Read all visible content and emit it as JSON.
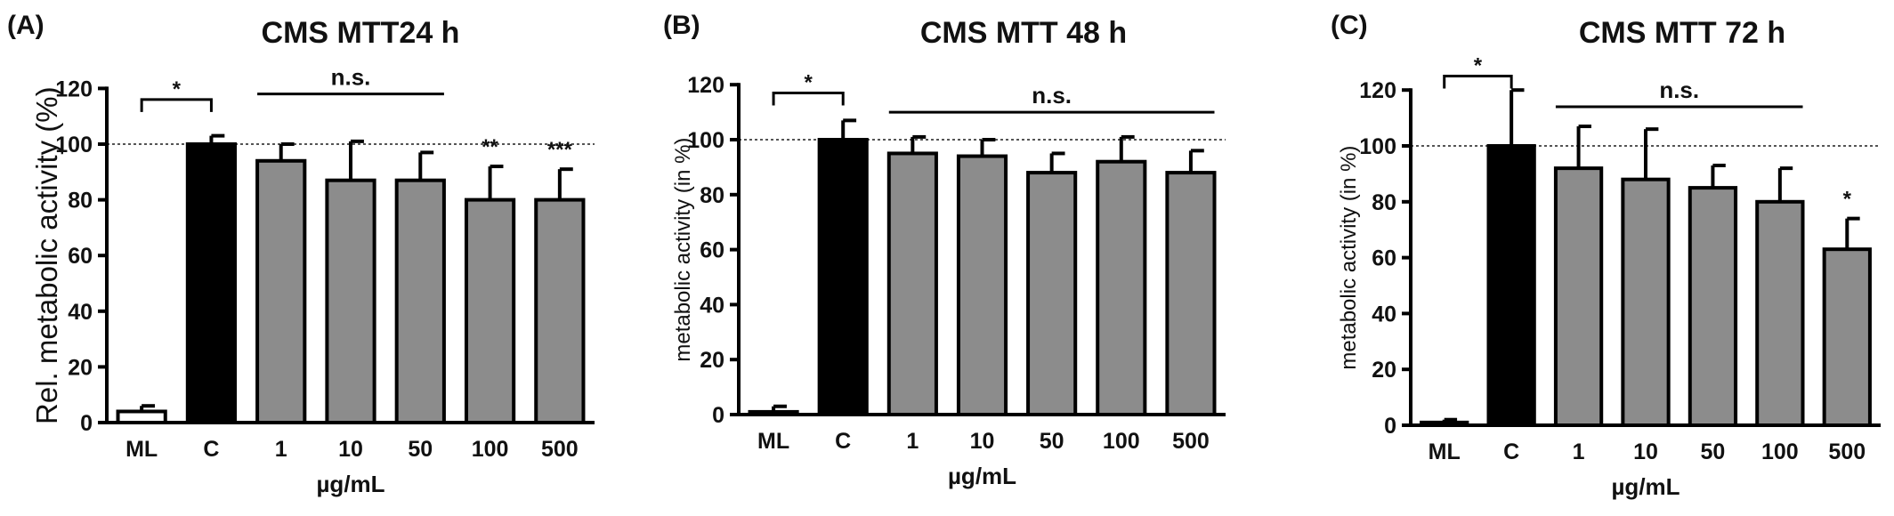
{
  "chart_data": [
    {
      "panel_label": "(A)",
      "type": "bar",
      "title": "CMS MTT24 h",
      "ylabel": "Rel. metabolic activity (%)",
      "xlabel": "µg/mL",
      "ylim": [
        0,
        120
      ],
      "yticks": [
        0,
        20,
        40,
        60,
        80,
        100,
        120
      ],
      "reference_line": 100,
      "categories": [
        "ML",
        "C",
        "1",
        "10",
        "50",
        "100",
        "500"
      ],
      "values": [
        4,
        100,
        94,
        87,
        87,
        80,
        80
      ],
      "errors": [
        2,
        3,
        6,
        14,
        10,
        12,
        11
      ],
      "bar_colors": [
        "#ffffff",
        "#000000",
        "#8c8c8c",
        "#8c8c8c",
        "#8c8c8c",
        "#8c8c8c",
        "#8c8c8c"
      ],
      "brackets": [
        {
          "from": "ML",
          "to": "C",
          "y": 116,
          "label": "*"
        }
      ],
      "ns_line": {
        "from": "1",
        "to": "50",
        "y": 118,
        "label": "n.s."
      },
      "stars": [
        {
          "category": "100",
          "label": "**"
        },
        {
          "category": "500",
          "label": "***"
        }
      ]
    },
    {
      "panel_label": "(B)",
      "type": "bar",
      "title": "CMS MTT 48 h",
      "ylabel": "metabolic activity (in %)",
      "xlabel": "µg/mL",
      "ylim": [
        0,
        120
      ],
      "yticks": [
        0,
        20,
        40,
        60,
        80,
        100,
        120
      ],
      "reference_line": 100,
      "categories": [
        "ML",
        "C",
        "1",
        "10",
        "50",
        "100",
        "500"
      ],
      "values": [
        1,
        100,
        95,
        94,
        88,
        92,
        88
      ],
      "errors": [
        2,
        7,
        6,
        6,
        7,
        9,
        8
      ],
      "bar_colors": [
        "#ffffff",
        "#000000",
        "#8c8c8c",
        "#8c8c8c",
        "#8c8c8c",
        "#8c8c8c",
        "#8c8c8c"
      ],
      "brackets": [
        {
          "from": "ML",
          "to": "C",
          "y": 117,
          "label": "*"
        }
      ],
      "ns_line": {
        "from": "1",
        "to": "500",
        "y": 110,
        "label": "n.s."
      },
      "stars": []
    },
    {
      "panel_label": "(C)",
      "type": "bar",
      "title": "CMS MTT 72 h",
      "ylabel": "metabolic activity (in %)",
      "xlabel": "µg/mL",
      "ylim": [
        0,
        120
      ],
      "yticks": [
        0,
        20,
        40,
        60,
        80,
        100,
        120
      ],
      "reference_line": 100,
      "categories": [
        "ML",
        "C",
        "1",
        "10",
        "50",
        "100",
        "500"
      ],
      "values": [
        1,
        100,
        92,
        88,
        85,
        80,
        63
      ],
      "errors": [
        1,
        20,
        15,
        18,
        8,
        12,
        11
      ],
      "bar_colors": [
        "#ffffff",
        "#000000",
        "#8c8c8c",
        "#8c8c8c",
        "#8c8c8c",
        "#8c8c8c",
        "#8c8c8c"
      ],
      "brackets": [
        {
          "from": "ML",
          "to": "C",
          "y": 125,
          "label": "*"
        }
      ],
      "ns_line": {
        "from": "1",
        "to": "100",
        "y": 114,
        "label": "n.s."
      },
      "stars": [
        {
          "category": "500",
          "label": "*"
        }
      ]
    }
  ]
}
